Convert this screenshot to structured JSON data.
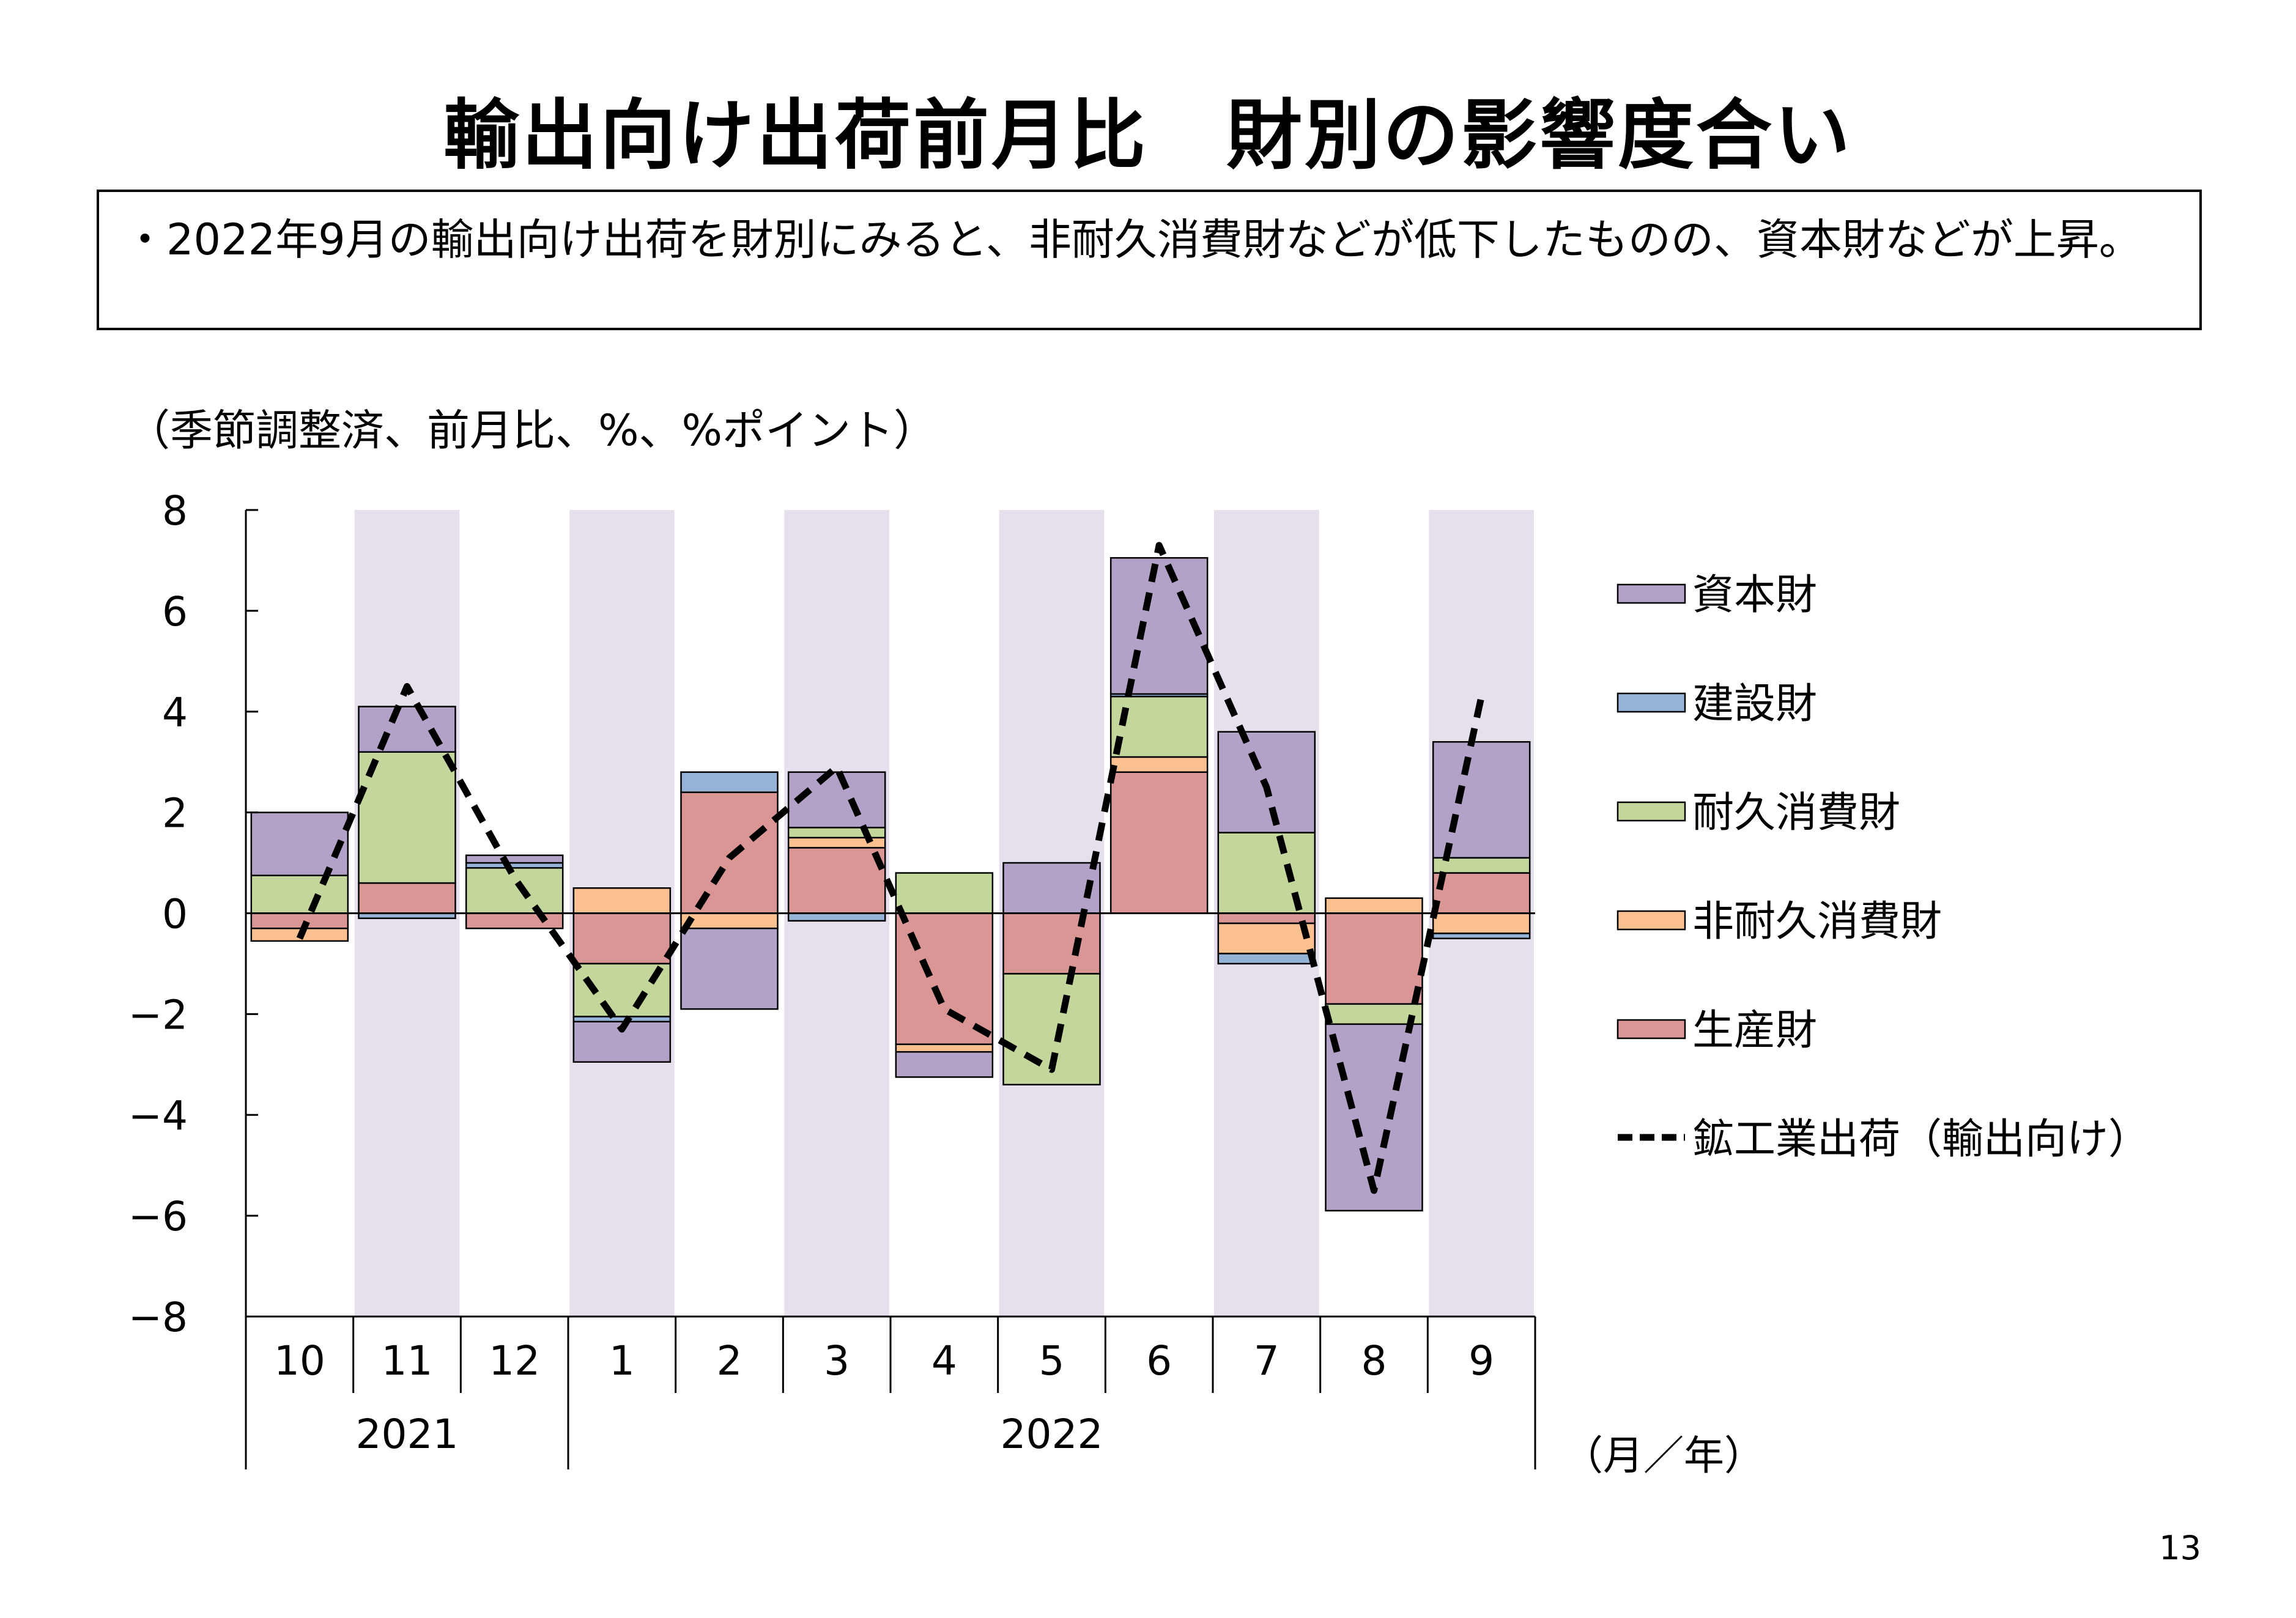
{
  "title": "輸出向け出荷前月比　財別の影響度合い",
  "summary": "・2022年9月の輸出向け出荷を財別にみると、非耐久消費財などが低下したものの、資本財などが上昇。",
  "unit_label": "（季節調整済、前月比、%、%ポイント）",
  "page_number": "13",
  "colors": {
    "capital": "#b2a2c7",
    "construction": "#95b3d7",
    "durable": "#c3d69b",
    "nondurable": "#fac090",
    "producer": "#d99694",
    "shade": "#e6e0ec"
  },
  "chart_data": {
    "type": "bar",
    "stacked": true,
    "categories": [
      "10",
      "11",
      "12",
      "1",
      "2",
      "3",
      "4",
      "5",
      "6",
      "7",
      "8",
      "9"
    ],
    "years": [
      {
        "label": "2021",
        "start": 0,
        "end": 2
      },
      {
        "label": "2022",
        "start": 3,
        "end": 11
      }
    ],
    "ylim": [
      -8,
      8
    ],
    "yticks": [
      8,
      6,
      4,
      2,
      0,
      -2,
      -4,
      -6,
      -8
    ],
    "x_unit_label": "（月／年）",
    "shaded_categories": [
      1,
      3,
      5,
      7,
      9,
      11
    ],
    "series": [
      {
        "name": "生産財",
        "key": "producer",
        "values": [
          -0.3,
          0.6,
          -0.3,
          -1.0,
          2.4,
          1.3,
          -2.6,
          -1.2,
          2.8,
          -0.2,
          -1.8,
          0.8
        ]
      },
      {
        "name": "非耐久消費財",
        "key": "nondurable",
        "values": [
          -0.25,
          0.0,
          0.0,
          0.5,
          -0.3,
          0.2,
          -0.15,
          0.0,
          0.3,
          -0.6,
          0.3,
          -0.4
        ]
      },
      {
        "name": "耐久消費財",
        "key": "durable",
        "values": [
          0.75,
          2.6,
          0.9,
          -1.05,
          0.0,
          0.2,
          0.8,
          -2.2,
          1.2,
          1.6,
          -0.4,
          0.3
        ]
      },
      {
        "name": "建設財",
        "key": "construction",
        "values": [
          0.0,
          -0.1,
          0.1,
          -0.1,
          0.4,
          -0.15,
          0.0,
          0.0,
          0.05,
          -0.2,
          0.0,
          -0.1
        ]
      },
      {
        "name": "資本財",
        "key": "capital",
        "values": [
          1.25,
          0.9,
          0.15,
          -0.8,
          -1.6,
          1.1,
          -0.5,
          1.0,
          2.7,
          2.0,
          -3.7,
          2.3
        ]
      }
    ],
    "line": {
      "name": "鉱工業出荷（輸出向け）",
      "values": [
        -0.5,
        4.5,
        0.7,
        -2.3,
        1.1,
        2.9,
        -1.9,
        -3.1,
        7.3,
        2.5,
        -5.5,
        4.3
      ]
    },
    "legend_order": [
      "capital",
      "construction",
      "durable",
      "nondurable",
      "producer",
      "line"
    ],
    "legend_labels": [
      "資本財",
      "建設財",
      "耐久消費財",
      "非耐久消費財",
      "生産財",
      "鉱工業出荷（輸出向け）"
    ],
    "legend_position": "right"
  }
}
